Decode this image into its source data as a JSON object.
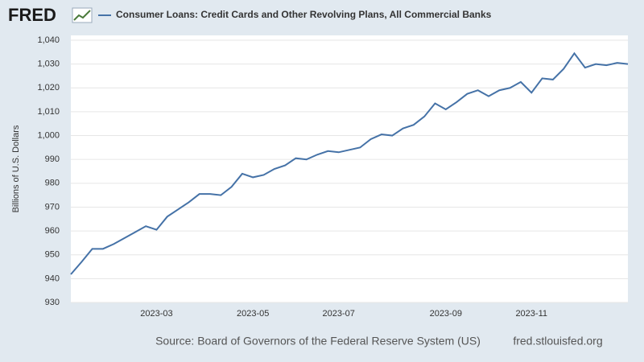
{
  "chart_data": {
    "type": "line",
    "logo": "FRED",
    "title": "Consumer Loans: Credit Cards and Other Revolving Plans, All Commercial Banks",
    "y_label": "Billions of U.S. Dollars",
    "source": "Source: Board of Governors of the Federal Reserve System (US)",
    "url": "fred.stlouisfed.org",
    "categories": [
      null,
      null,
      null,
      null,
      null,
      null,
      null,
      null,
      "2023-03",
      null,
      null,
      null,
      null,
      null,
      null,
      null,
      null,
      "2023-05",
      null,
      null,
      null,
      null,
      null,
      null,
      null,
      "2023-07",
      null,
      null,
      null,
      null,
      null,
      null,
      null,
      null,
      null,
      "2023-09",
      null,
      null,
      null,
      null,
      null,
      null,
      null,
      "2023-11",
      null,
      null,
      null,
      null,
      null,
      null,
      null,
      null,
      null
    ],
    "series": [
      {
        "name": "Consumer Loans: Credit Cards and Other Revolving Plans, All Commercial Banks",
        "color": "#4572a7",
        "values": [
          941.8,
          947,
          952.5,
          952.5,
          954.5,
          957,
          959.5,
          962,
          960.5,
          966,
          969,
          972,
          975.5,
          975.5,
          975,
          978.5,
          984,
          982.5,
          983.5,
          986,
          987.5,
          990.5,
          990,
          992,
          993.5,
          993,
          994,
          995,
          998.5,
          1000.5,
          1000,
          1003,
          1004.5,
          1008,
          1013.5,
          1011,
          1014,
          1017.5,
          1019,
          1016.5,
          1019,
          1020,
          1022.5,
          1018,
          1024,
          1023.5,
          1028,
          1034.5,
          1028.5,
          1030,
          1029.5,
          1030.5,
          1030
        ]
      }
    ],
    "ylim": [
      930,
      1040
    ],
    "yticks": [
      930,
      940,
      950,
      960,
      970,
      980,
      990,
      {
        "value": 1000,
        "label": "1,000"
      },
      {
        "value": 1010,
        "label": "1,010"
      },
      {
        "value": 1020,
        "label": "1,020"
      },
      {
        "value": 1030,
        "label": "1,030"
      },
      {
        "value": 1040,
        "label": "1,040"
      }
    ],
    "grid": true
  }
}
